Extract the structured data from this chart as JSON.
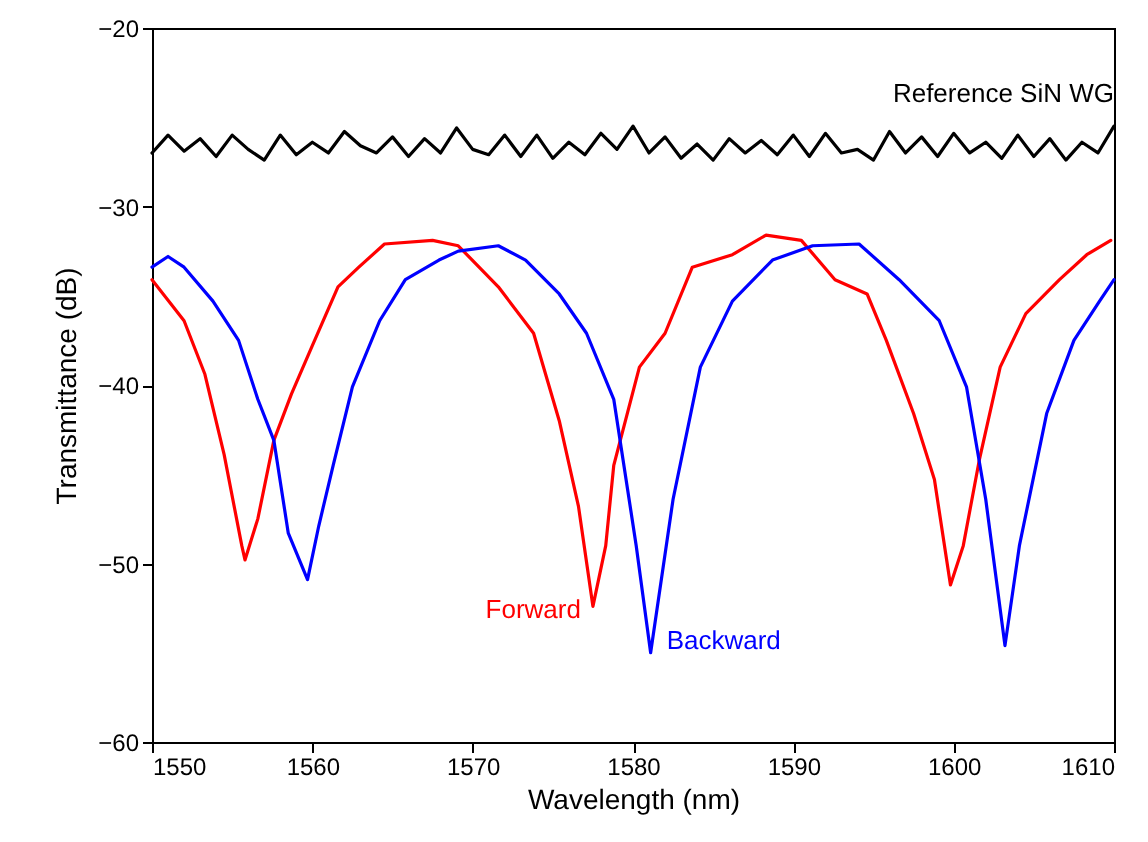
{
  "chart_data": {
    "type": "line",
    "xlabel": "Wavelength (nm)",
    "ylabel": "Transmittance (dB)",
    "xlim": [
      1550,
      1610
    ],
    "xticks": [
      1550,
      1560,
      1570,
      1580,
      1590,
      1600,
      1610
    ],
    "ylim": [
      -60,
      -20
    ],
    "yticks": [
      -60,
      -50,
      -40,
      -30,
      -20
    ],
    "grid": false,
    "marker": "none",
    "line_style": "solid",
    "series": [
      {
        "name": "Reference SiN WG",
        "color": "#000000",
        "x": [
          1550,
          1551,
          1552,
          1553,
          1554,
          1555,
          1556,
          1557,
          1558,
          1559,
          1560,
          1561,
          1562,
          1563,
          1564,
          1565,
          1566,
          1567,
          1568,
          1569,
          1570,
          1571,
          1572,
          1573,
          1574,
          1575,
          1576,
          1577,
          1578,
          1579,
          1580,
          1581,
          1582,
          1583,
          1584,
          1585,
          1586,
          1587,
          1588,
          1589,
          1590,
          1591,
          1592,
          1593,
          1594,
          1595,
          1596,
          1597,
          1598,
          1599,
          1600,
          1601,
          1602,
          1603,
          1604,
          1605,
          1606,
          1607,
          1608,
          1609,
          1610
        ],
        "values": [
          -27.0,
          -26.0,
          -26.9,
          -26.2,
          -27.2,
          -26.0,
          -26.8,
          -27.4,
          -26.0,
          -27.1,
          -26.4,
          -27.0,
          -25.8,
          -26.6,
          -27.0,
          -26.1,
          -27.2,
          -26.2,
          -27.0,
          -25.6,
          -26.8,
          -27.1,
          -26.0,
          -27.2,
          -26.0,
          -27.3,
          -26.4,
          -27.1,
          -25.9,
          -26.8,
          -25.5,
          -27.0,
          -26.1,
          -27.3,
          -26.5,
          -27.4,
          -26.2,
          -27.0,
          -26.3,
          -27.1,
          -26.0,
          -27.2,
          -25.9,
          -27.0,
          -26.8,
          -27.4,
          -25.8,
          -27.0,
          -26.1,
          -27.2,
          -25.9,
          -27.0,
          -26.4,
          -27.3,
          -26.0,
          -27.2,
          -26.2,
          -27.4,
          -26.4,
          -27.0,
          -25.5
        ]
      },
      {
        "name": "Forward",
        "color": "#ff0000",
        "x": [
          1550,
          1552,
          1553.3,
          1554.5,
          1555.6,
          1555.8,
          1556.6,
          1557.6,
          1558.7,
          1560,
          1561.6,
          1562.9,
          1564.5,
          1567.5,
          1569.1,
          1571.6,
          1573.8,
          1575.4,
          1576.6,
          1577.5,
          1578.3,
          1578.8,
          1580.4,
          1582,
          1583.7,
          1586.2,
          1588.3,
          1590.5,
          1592.6,
          1594.6,
          1595.8,
          1597.5,
          1598.8,
          1599.8,
          1600.6,
          1601.6,
          1602.9,
          1604.5,
          1606.6,
          1608.3,
          1609.8
        ],
        "values": [
          -34.1,
          -36.4,
          -39.4,
          -43.9,
          -49.0,
          -49.8,
          -47.5,
          -43.1,
          -40.5,
          -37.8,
          -34.5,
          -33.4,
          -32.1,
          -31.9,
          -32.2,
          -34.5,
          -37.1,
          -42.0,
          -46.8,
          -52.4,
          -49.0,
          -44.5,
          -39.0,
          -37.1,
          -33.4,
          -32.7,
          -31.6,
          -31.9,
          -34.1,
          -34.9,
          -37.5,
          -41.6,
          -45.3,
          -51.2,
          -49.0,
          -44.2,
          -39.0,
          -36.0,
          -34.1,
          -32.7,
          -31.9
        ]
      },
      {
        "name": "Backward",
        "color": "#0000ff",
        "x": [
          1550,
          1551,
          1552,
          1553.8,
          1555.4,
          1556.6,
          1557.6,
          1558.5,
          1559.7,
          1560.4,
          1561.3,
          1562.5,
          1564.2,
          1565.8,
          1567.9,
          1569.1,
          1571.6,
          1573.3,
          1575.4,
          1577.1,
          1578.8,
          1580.2,
          1581.1,
          1582.5,
          1584.2,
          1586.2,
          1588.7,
          1591.2,
          1594.1,
          1596.6,
          1599.1,
          1600.8,
          1602,
          1603.2,
          1604.1,
          1605.8,
          1607.5,
          1609.1,
          1610
        ],
        "values": [
          -33.4,
          -32.8,
          -33.4,
          -35.3,
          -37.5,
          -40.8,
          -43.1,
          -48.3,
          -50.9,
          -47.9,
          -44.5,
          -40.1,
          -36.4,
          -34.1,
          -33.0,
          -32.5,
          -32.2,
          -33.0,
          -34.9,
          -37.1,
          -40.8,
          -49.0,
          -55.0,
          -46.4,
          -39.0,
          -35.3,
          -33.0,
          -32.2,
          -32.1,
          -34.1,
          -36.4,
          -40.1,
          -46.4,
          -54.6,
          -49.0,
          -41.6,
          -37.5,
          -35.3,
          -34.1
        ]
      }
    ]
  }
}
